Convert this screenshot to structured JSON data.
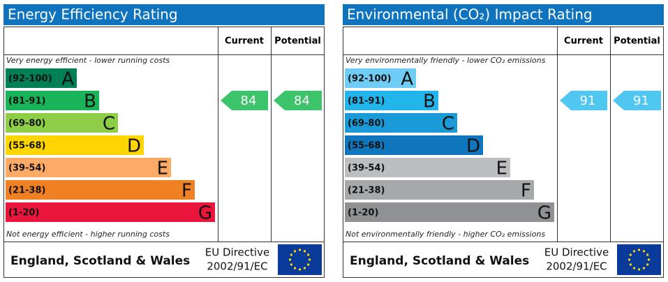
{
  "chart_data": [
    {
      "type": "epc",
      "title": "Energy Efficiency Rating",
      "columns": [
        "Current",
        "Potential"
      ],
      "top_note": "Very energy efficient - lower running costs",
      "bottom_note": "Not energy efficient - higher running costs",
      "bands": [
        {
          "range": "(92-100)",
          "letter": "A",
          "color": "#008054"
        },
        {
          "range": "(81-91)",
          "letter": "B",
          "color": "#19b459"
        },
        {
          "range": "(69-80)",
          "letter": "C",
          "color": "#8dce46"
        },
        {
          "range": "(55-68)",
          "letter": "D",
          "color": "#ffd500"
        },
        {
          "range": "(39-54)",
          "letter": "E",
          "color": "#fcaa65"
        },
        {
          "range": "(21-38)",
          "letter": "F",
          "color": "#ef8023"
        },
        {
          "range": "(1-20)",
          "letter": "G",
          "color": "#e9153b"
        }
      ],
      "current": 84,
      "potential": 84,
      "rating_color": "#3dc46a",
      "region": "England, Scotland & Wales",
      "directive": [
        "EU Directive",
        "2002/91/EC"
      ]
    },
    {
      "type": "epc",
      "title": "Environmental (CO₂) Impact Rating",
      "columns": [
        "Current",
        "Potential"
      ],
      "top_note": "Very environmentally friendly - lower CO₂ emissions",
      "bottom_note": "Not environmentally friendly - higher CO₂ emissions",
      "bands": [
        {
          "range": "(92-100)",
          "letter": "A",
          "color": "#6fcdf5"
        },
        {
          "range": "(81-91)",
          "letter": "B",
          "color": "#22b5eb"
        },
        {
          "range": "(69-80)",
          "letter": "C",
          "color": "#1a9ad6"
        },
        {
          "range": "(55-68)",
          "letter": "D",
          "color": "#0f75bc"
        },
        {
          "range": "(39-54)",
          "letter": "E",
          "color": "#bcbec0"
        },
        {
          "range": "(21-38)",
          "letter": "F",
          "color": "#a6a8ab"
        },
        {
          "range": "(1-20)",
          "letter": "G",
          "color": "#8f9194"
        }
      ],
      "current": 91,
      "potential": 91,
      "rating_color": "#4fc7f0",
      "region": "England, Scotland & Wales",
      "directive": [
        "EU Directive",
        "2002/91/EC"
      ]
    }
  ]
}
